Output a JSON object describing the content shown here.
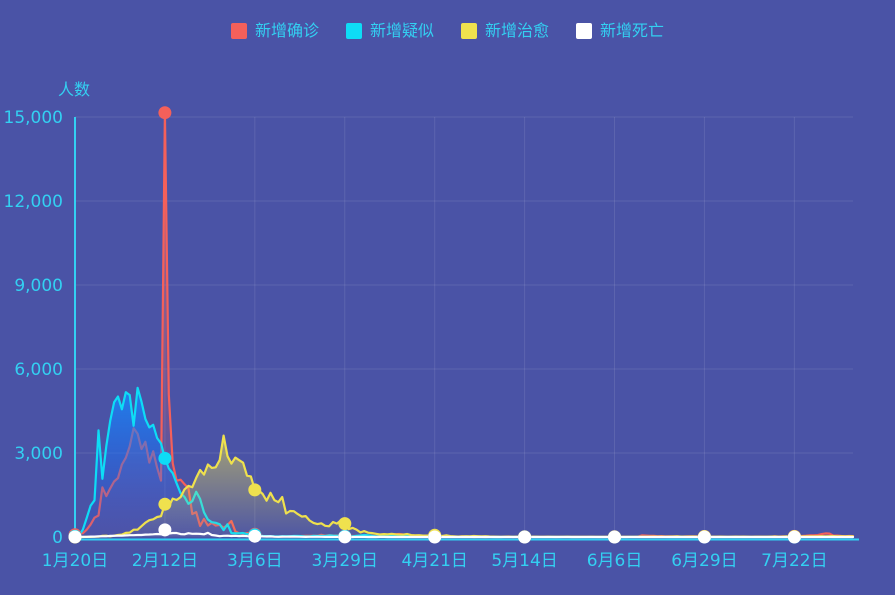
{
  "chart_data": {
    "type": "line",
    "title": "",
    "ylabel": "人数",
    "y_ticks": [
      "0",
      "3,000",
      "6,000",
      "9,000",
      "12,000",
      "15,000"
    ],
    "y_max": 15000,
    "ylim": [
      0,
      15000
    ],
    "x_tick_labels": [
      "1月20日",
      "2月12日",
      "3月6日",
      "3月29日",
      "4月21日",
      "5月14日",
      "6月6日",
      "6月29日",
      "7月22日"
    ],
    "x_tick_interval_days": 23,
    "x_resolution": "daily",
    "grid": true,
    "legend_position": "top-center",
    "background_color": "#4a53a6",
    "axis_color": "#33d0f2",
    "label_color": "#33d0f2",
    "grid_color": "rgba(255,255,255,0.10)",
    "marker_radius": 6.5,
    "series": [
      {
        "id": "confirmed",
        "name": "新增确诊",
        "color": "#f4605a",
        "area_from": "rgba(244,96,90,0.55)",
        "area_to": "rgba(244,96,90,0.03)",
        "values": [
          77,
          149,
          131,
          259,
          444,
          688,
          769,
          1771,
          1459,
          1737,
          1982,
          2102,
          2590,
          2829,
          3235,
          3887,
          3694,
          3143,
          3399,
          2656,
          3062,
          2478,
          2015,
          15152,
          5090,
          2641,
          2009,
          2048,
          1886,
          1749,
          820,
          889,
          397,
          648,
          409,
          508,
          406,
          433,
          327,
          427,
          573,
          202,
          125,
          119,
          139,
          143,
          99,
          44,
          40,
          19,
          24,
          15,
          8,
          11,
          20,
          16,
          21,
          13,
          34,
          39,
          41,
          46,
          39,
          78,
          47,
          67,
          55,
          54,
          45,
          31,
          48,
          36,
          35,
          31,
          19,
          30,
          39,
          32,
          62,
          63,
          42,
          46,
          99,
          108,
          89,
          46,
          46,
          26,
          27,
          16,
          12,
          11,
          30,
          10,
          6,
          12,
          11,
          3,
          6,
          22,
          4,
          12,
          1,
          2,
          3,
          1,
          2,
          2,
          1,
          1,
          14,
          17,
          1,
          7,
          3,
          4,
          8,
          5,
          7,
          6,
          5,
          2,
          4,
          0,
          3,
          11,
          7,
          1,
          2,
          0,
          4,
          2,
          16,
          5,
          1,
          1,
          5,
          3,
          6,
          4,
          4,
          3,
          11,
          7,
          11,
          57,
          49,
          40,
          44,
          28,
          32,
          23,
          26,
          18,
          22,
          12,
          19,
          21,
          17,
          21,
          12,
          19,
          3,
          5,
          5,
          3,
          8,
          4,
          4,
          8,
          9,
          4,
          2,
          7,
          8,
          10,
          6,
          6,
          10,
          22,
          16,
          22,
          11,
          14,
          22,
          21,
          34,
          46,
          61,
          57,
          68,
          105,
          127,
          123,
          45,
          49,
          36,
          27,
          37,
          31
        ]
      },
      {
        "id": "suspected",
        "name": "新增疑似",
        "color": "#0edcf6",
        "area_from": "rgba(20,140,255,0.80)",
        "area_to": "rgba(20,90,255,0.04)",
        "values": [
          27,
          53,
          257,
          680,
          1118,
          1309,
          3806,
          2077,
          3248,
          4148,
          4812,
          5019,
          4562,
          5173,
          5072,
          3971,
          5328,
          4833,
          4214,
          3916,
          4008,
          3536,
          3342,
          2807,
          2450,
          2277,
          1918,
          1563,
          1432,
          1185,
          1277,
          1614,
          1361,
          882,
          620,
          530,
          508,
          452,
          248,
          452,
          141,
          132,
          129,
          143,
          102,
          99,
          75,
          50,
          36,
          31,
          33,
          22,
          17,
          28,
          27,
          29,
          35,
          36,
          31,
          19,
          22,
          43,
          35,
          41,
          35,
          58,
          49,
          48,
          28,
          30,
          24,
          26,
          42,
          55,
          70,
          57,
          39,
          26,
          23,
          29,
          27,
          34,
          73,
          72,
          60,
          38,
          34,
          27,
          24,
          17,
          14,
          12,
          22,
          9,
          7,
          6,
          5,
          4,
          3,
          5,
          3,
          4,
          2,
          3,
          3,
          2,
          2,
          1,
          2,
          1,
          3,
          4,
          2,
          3,
          1,
          2,
          2,
          1,
          2,
          1,
          1,
          1,
          2,
          1,
          1,
          3,
          2,
          1,
          1,
          0,
          1,
          1,
          2,
          1,
          1,
          0,
          1,
          1,
          2,
          1,
          1,
          1,
          2,
          3,
          4,
          5,
          4,
          3,
          3,
          2,
          2,
          2,
          1,
          1,
          2,
          1,
          1,
          2,
          1,
          1,
          1,
          2,
          1,
          1,
          1,
          1,
          1,
          1,
          0,
          1,
          1,
          0,
          1,
          1,
          1,
          1,
          0,
          1,
          1,
          2,
          1,
          2,
          1,
          1,
          1,
          1,
          2,
          3,
          4,
          3,
          3,
          4,
          3,
          2,
          1,
          1,
          1,
          0,
          1,
          1
        ]
      },
      {
        "id": "recovered",
        "name": "新增治愈",
        "color": "#efe14e",
        "area_from": "rgba(238,225,78,0.55)",
        "area_to": "rgba(238,225,78,0.03)",
        "values": [
          0,
          0,
          0,
          6,
          3,
          11,
          9,
          43,
          46,
          21,
          47,
          72,
          85,
          147,
          157,
          262,
          261,
          387,
          510,
          600,
          632,
          716,
          744,
          1171,
          1081,
          1373,
          1323,
          1425,
          1701,
          1824,
          1779,
          2109,
          2393,
          2230,
          2589,
          2467,
          2491,
          2750,
          3622,
          2885,
          2623,
          2837,
          2742,
          2652,
          2189,
          2164,
          1681,
          1661,
          1535,
          1297,
          1578,
          1318,
          1243,
          1430,
          838,
          930,
          921,
          819,
          730,
          746,
          590,
          504,
          459,
          491,
          401,
          381,
          537,
          477,
          590,
          477,
          282,
          325,
          266,
          165,
          212,
          155,
          140,
          116,
          88,
          105,
          92,
          109,
          98,
          88,
          84,
          107,
          69,
          59,
          65,
          51,
          50,
          58,
          59,
          39,
          36,
          59,
          33,
          26,
          14,
          20,
          28,
          23,
          36,
          28,
          21,
          30,
          17,
          15,
          10,
          6,
          9,
          12,
          6,
          9,
          8,
          5,
          6,
          9,
          11,
          8,
          4,
          9,
          5,
          8,
          4,
          3,
          9,
          6,
          4,
          5,
          6,
          3,
          5,
          4,
          3,
          2,
          3,
          5,
          2,
          4,
          6,
          3,
          5,
          4,
          6,
          8,
          5,
          11,
          13,
          9,
          14,
          11,
          16,
          18,
          21,
          13,
          15,
          16,
          18,
          14,
          20,
          17,
          15,
          12,
          9,
          13,
          10,
          8,
          11,
          13,
          9,
          14,
          11,
          8,
          10,
          12,
          9,
          11,
          14,
          18,
          12,
          16,
          20,
          15,
          19,
          24,
          18,
          22,
          26,
          21,
          25,
          28,
          24,
          29,
          31,
          26,
          30,
          24,
          28,
          25
        ]
      },
      {
        "id": "deaths",
        "name": "新增死亡",
        "color": "#ffffff",
        "area_from": "rgba(255,255,255,0.22)",
        "area_to": "rgba(255,255,255,0.0)",
        "values": [
          2,
          3,
          8,
          8,
          16,
          15,
          24,
          26,
          26,
          38,
          43,
          46,
          45,
          57,
          64,
          65,
          73,
          73,
          86,
          89,
          97,
          108,
          97,
          254,
          121,
          143,
          142,
          105,
          98,
          136,
          114,
          118,
          109,
          97,
          150,
          71,
          52,
          29,
          44,
          47,
          35,
          42,
          31,
          38,
          31,
          30,
          28,
          27,
          22,
          17,
          22,
          11,
          7,
          13,
          10,
          14,
          13,
          11,
          8,
          3,
          7,
          6,
          9,
          7,
          4,
          6,
          5,
          3,
          5,
          4,
          1,
          1,
          7,
          4,
          3,
          1,
          3,
          0,
          2,
          2,
          1,
          0,
          0,
          0,
          1,
          0,
          0,
          0,
          0,
          0,
          0,
          0,
          0,
          0,
          0,
          0,
          0,
          0,
          0,
          0,
          0,
          0,
          0,
          0,
          0,
          0,
          0,
          0,
          0,
          0,
          0,
          0,
          0,
          0,
          0,
          0,
          0,
          0,
          0,
          0,
          0,
          0,
          0,
          0,
          0,
          0,
          0,
          0,
          0,
          0,
          0,
          0,
          0,
          0,
          0,
          0,
          0,
          0,
          0,
          0,
          0,
          0,
          0,
          0,
          0,
          0,
          0,
          0,
          0,
          0,
          0,
          0,
          0,
          0,
          0,
          0,
          0,
          0,
          0,
          0,
          0,
          0,
          0,
          0,
          0,
          0,
          0,
          0,
          0,
          0,
          0,
          0,
          0,
          0,
          0,
          0,
          0,
          0,
          0,
          0,
          0,
          0,
          0,
          0,
          0,
          0,
          0,
          0,
          0,
          0,
          0,
          0,
          0,
          0,
          0,
          0,
          0,
          0,
          0,
          0
        ]
      }
    ]
  }
}
